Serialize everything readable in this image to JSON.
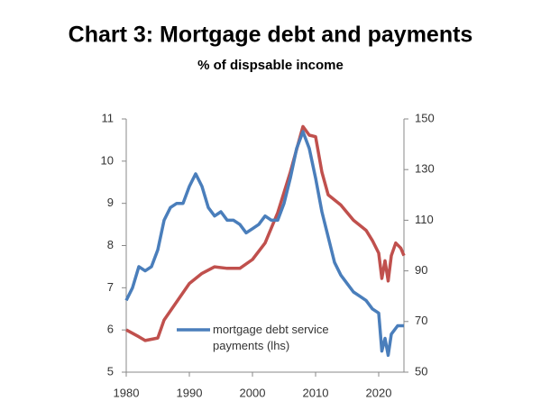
{
  "chart_data": {
    "type": "line",
    "title": "Chart 3: Mortgage debt and payments",
    "subtitle": "% of dispsable income",
    "xlim": [
      1980,
      2024
    ],
    "xticks": [
      1980,
      1990,
      2000,
      2010,
      2020
    ],
    "ylim": [
      5,
      11
    ],
    "yticks": [
      5,
      6,
      7,
      8,
      9,
      10,
      11
    ],
    "y2lim": [
      50,
      150
    ],
    "y2ticks": [
      50,
      70,
      90,
      110,
      130,
      150
    ],
    "series": [
      {
        "name": "mortgage debt service payments (lhs)",
        "color": "#4a7ebb",
        "x": [
          1980,
          1981,
          1982,
          1983,
          1984,
          1985,
          1986,
          1987,
          1988,
          1989,
          1990,
          1991,
          1992,
          1993,
          1994,
          1995,
          1996,
          1997,
          1998,
          1999,
          2000,
          2001,
          2002,
          2003,
          2004,
          2005,
          2006,
          2007,
          2008,
          2009,
          2010,
          2011,
          2012,
          2013,
          2014,
          2015,
          2016,
          2017,
          2018,
          2019,
          2020,
          2020.5,
          2021,
          2021.5,
          2022,
          2023,
          2024
        ],
        "values": [
          6.7,
          7.0,
          7.5,
          7.4,
          7.5,
          7.9,
          8.6,
          8.9,
          9.0,
          9.0,
          9.4,
          9.7,
          9.4,
          8.9,
          8.7,
          8.8,
          8.6,
          8.6,
          8.5,
          8.3,
          8.4,
          8.5,
          8.7,
          8.6,
          8.6,
          9.0,
          9.6,
          10.3,
          10.7,
          10.3,
          9.6,
          8.8,
          8.2,
          7.6,
          7.3,
          7.1,
          6.9,
          6.8,
          6.7,
          6.5,
          6.4,
          5.5,
          5.8,
          5.4,
          5.9,
          6.1,
          6.1
        ]
      },
      {
        "color": "#c0504d",
        "axis": "y2",
        "x": [
          1980,
          1982,
          1983,
          1985,
          1986,
          1988,
          1990,
          1992,
          1994,
          1996,
          1998,
          2000,
          2002,
          2004,
          2006,
          2008,
          2009,
          2010,
          2011,
          2012,
          2013,
          2014,
          2016,
          2018,
          2019,
          2020,
          2020.5,
          2021,
          2021.5,
          2022,
          2022.7,
          2023.5,
          2024
        ],
        "values": [
          66.7,
          64,
          62.5,
          63.5,
          70.6,
          77.8,
          85,
          89,
          91.6,
          91,
          91,
          94.5,
          101,
          113,
          129,
          147,
          143.6,
          143,
          129,
          120,
          118,
          116,
          110,
          106,
          102,
          97,
          87,
          94,
          86,
          96,
          101,
          99,
          96
        ]
      }
    ]
  }
}
